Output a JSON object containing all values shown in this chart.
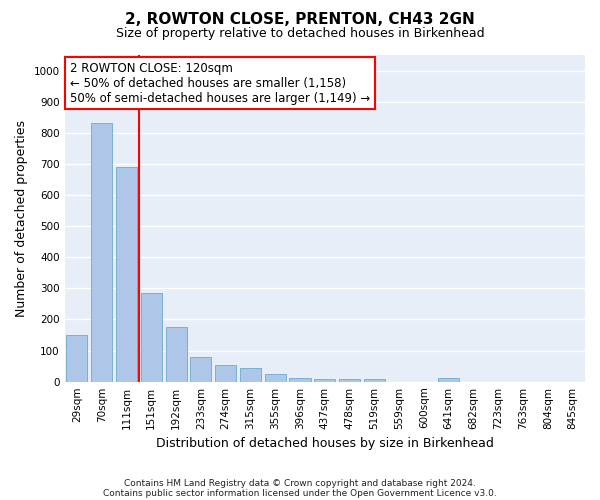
{
  "title": "2, ROWTON CLOSE, PRENTON, CH43 2GN",
  "subtitle": "Size of property relative to detached houses in Birkenhead",
  "xlabel": "Distribution of detached houses by size in Birkenhead",
  "ylabel": "Number of detached properties",
  "footnote1": "Contains HM Land Registry data © Crown copyright and database right 2024.",
  "footnote2": "Contains public sector information licensed under the Open Government Licence v3.0.",
  "categories": [
    "29sqm",
    "70sqm",
    "111sqm",
    "151sqm",
    "192sqm",
    "233sqm",
    "274sqm",
    "315sqm",
    "355sqm",
    "396sqm",
    "437sqm",
    "478sqm",
    "519sqm",
    "559sqm",
    "600sqm",
    "641sqm",
    "682sqm",
    "723sqm",
    "763sqm",
    "804sqm",
    "845sqm"
  ],
  "values": [
    150,
    830,
    690,
    285,
    175,
    80,
    55,
    45,
    25,
    12,
    10,
    10,
    8,
    0,
    0,
    12,
    0,
    0,
    0,
    0,
    0
  ],
  "bar_color": "#aec6e8",
  "bar_edge_color": "#7ab0d4",
  "red_line_x": 2.5,
  "annotation_line1": "2 ROWTON CLOSE: 120sqm",
  "annotation_line2": "← 50% of detached houses are smaller (1,158)",
  "annotation_line3": "50% of semi-detached houses are larger (1,149) →",
  "annotation_box_color": "white",
  "annotation_box_edge_color": "red",
  "ylim": [
    0,
    1050
  ],
  "yticks": [
    0,
    100,
    200,
    300,
    400,
    500,
    600,
    700,
    800,
    900,
    1000
  ],
  "background_color": "#e8eef8",
  "grid_color": "white",
  "title_fontsize": 11,
  "subtitle_fontsize": 9,
  "xlabel_fontsize": 9,
  "ylabel_fontsize": 9,
  "tick_fontsize": 7.5,
  "annotation_fontsize": 8.5
}
